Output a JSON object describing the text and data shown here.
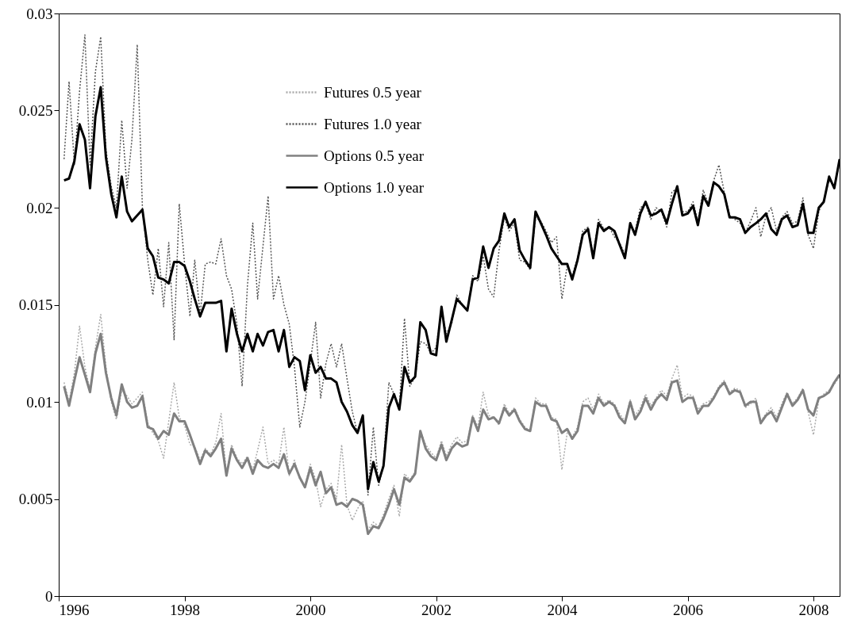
{
  "chart_data": {
    "type": "line",
    "x": [
      "1996-02",
      "1996-03",
      "1996-04",
      "1996-05",
      "1996-06",
      "1996-07",
      "1996-08",
      "1996-09",
      "1996-10",
      "1996-11",
      "1996-12",
      "1997-01",
      "1997-02",
      "1997-03",
      "1997-04",
      "1997-05",
      "1997-06",
      "1997-07",
      "1997-08",
      "1997-09",
      "1997-10",
      "1997-11",
      "1997-12",
      "1998-01",
      "1998-02",
      "1998-03",
      "1998-04",
      "1998-05",
      "1998-06",
      "1998-07",
      "1998-08",
      "1998-09",
      "1998-10",
      "1998-11",
      "1998-12",
      "1999-01",
      "1999-02",
      "1999-03",
      "1999-04",
      "1999-05",
      "1999-06",
      "1999-07",
      "1999-08",
      "1999-09",
      "1999-10",
      "1999-11",
      "1999-12",
      "2000-01",
      "2000-02",
      "2000-03",
      "2000-04",
      "2000-05",
      "2000-06",
      "2000-07",
      "2000-08",
      "2000-09",
      "2000-10",
      "2000-11",
      "2000-12",
      "2001-01",
      "2001-02",
      "2001-03",
      "2001-04",
      "2001-05",
      "2001-06",
      "2001-07",
      "2001-08",
      "2001-09",
      "2001-10",
      "2001-11",
      "2001-12",
      "2002-01",
      "2002-02",
      "2002-03",
      "2002-04",
      "2002-05",
      "2002-06",
      "2002-07",
      "2002-08",
      "2002-09",
      "2002-10",
      "2002-11",
      "2002-12",
      "2003-01",
      "2003-02",
      "2003-03",
      "2003-04",
      "2003-05",
      "2003-06",
      "2003-07",
      "2003-08",
      "2003-09",
      "2003-10",
      "2003-11",
      "2003-12",
      "2004-01",
      "2004-02",
      "2004-03",
      "2004-04",
      "2004-05",
      "2004-06",
      "2004-07",
      "2004-08",
      "2004-09",
      "2004-10",
      "2004-11",
      "2004-12",
      "2005-01",
      "2005-02",
      "2005-03",
      "2005-04",
      "2005-05",
      "2005-06",
      "2005-07",
      "2005-08",
      "2005-09",
      "2005-10",
      "2005-11",
      "2005-12",
      "2006-01",
      "2006-02",
      "2006-03",
      "2006-04",
      "2006-05",
      "2006-06",
      "2006-07",
      "2006-08",
      "2006-09",
      "2006-10",
      "2006-11",
      "2006-12",
      "2007-01",
      "2007-02",
      "2007-03",
      "2007-04",
      "2007-05",
      "2007-06",
      "2007-07",
      "2007-08",
      "2007-09",
      "2007-10",
      "2007-11",
      "2007-12",
      "2008-01",
      "2008-02",
      "2008-03",
      "2008-04",
      "2008-05",
      "2008-06"
    ],
    "series": [
      {
        "name": "Futures 0.5 year",
        "color": "#aaaaaa",
        "line_style": "dotted",
        "values": [
          0.011,
          0.01,
          0.0115,
          0.0139,
          0.0118,
          0.0106,
          0.0128,
          0.0145,
          0.0118,
          0.01,
          0.0091,
          0.0106,
          0.0103,
          0.0099,
          0.0102,
          0.0105,
          0.0089,
          0.0084,
          0.008,
          0.0071,
          0.009,
          0.011,
          0.0092,
          0.0088,
          0.0078,
          0.0077,
          0.007,
          0.0076,
          0.0073,
          0.0079,
          0.0094,
          0.0062,
          0.0078,
          0.0071,
          0.0068,
          0.0072,
          0.0065,
          0.0075,
          0.0087,
          0.0068,
          0.007,
          0.0068,
          0.0087,
          0.0062,
          0.007,
          0.006,
          0.0057,
          0.0068,
          0.006,
          0.0046,
          0.0055,
          0.0058,
          0.005,
          0.0078,
          0.0047,
          0.0039,
          0.0045,
          0.0049,
          0.0034,
          0.0038,
          0.0036,
          0.0042,
          0.005,
          0.0057,
          0.0041,
          0.0063,
          0.006,
          0.0064,
          0.0085,
          0.0078,
          0.0074,
          0.0071,
          0.008,
          0.0072,
          0.0078,
          0.0082,
          0.0079,
          0.008,
          0.0093,
          0.0087,
          0.0105,
          0.0093,
          0.0092,
          0.0088,
          0.0099,
          0.0094,
          0.0097,
          0.0091,
          0.0087,
          0.0085,
          0.0102,
          0.0099,
          0.0099,
          0.0092,
          0.0091,
          0.0065,
          0.0084,
          0.0082,
          0.0087,
          0.01,
          0.0102,
          0.0096,
          0.0104,
          0.0099,
          0.0101,
          0.0099,
          0.0094,
          0.009,
          0.0101,
          0.0093,
          0.0097,
          0.0104,
          0.0098,
          0.0102,
          0.0106,
          0.0103,
          0.0112,
          0.0119,
          0.0102,
          0.0104,
          0.0103,
          0.0096,
          0.0099,
          0.01,
          0.0103,
          0.0108,
          0.0111,
          0.0105,
          0.0107,
          0.0106,
          0.0097,
          0.0099,
          0.0102,
          0.009,
          0.0094,
          0.0097,
          0.0092,
          0.0099,
          0.0105,
          0.0099,
          0.0102,
          0.0107,
          0.0095,
          0.0083,
          0.0101,
          0.0104,
          0.0106,
          0.0109,
          0.0113
        ]
      },
      {
        "name": "Futures 1.0 year",
        "color": "#555555",
        "line_style": "dotted",
        "values": [
          0.0225,
          0.0265,
          0.0222,
          0.026,
          0.0289,
          0.0222,
          0.027,
          0.0288,
          0.023,
          0.0211,
          0.02,
          0.0245,
          0.021,
          0.0235,
          0.0284,
          0.02,
          0.0173,
          0.0155,
          0.0179,
          0.0149,
          0.0182,
          0.0132,
          0.0202,
          0.0171,
          0.0144,
          0.0173,
          0.0145,
          0.0171,
          0.0172,
          0.0171,
          0.0184,
          0.0165,
          0.0158,
          0.014,
          0.0108,
          0.016,
          0.0192,
          0.0153,
          0.018,
          0.0206,
          0.0153,
          0.0165,
          0.015,
          0.014,
          0.0118,
          0.0087,
          0.01,
          0.012,
          0.0141,
          0.0102,
          0.012,
          0.013,
          0.0118,
          0.013,
          0.0112,
          0.0095,
          0.0084,
          0.0092,
          0.0052,
          0.0087,
          0.0057,
          0.0068,
          0.011,
          0.0104,
          0.0097,
          0.0143,
          0.0108,
          0.0113,
          0.0131,
          0.013,
          0.0125,
          0.0128,
          0.0148,
          0.0135,
          0.014,
          0.0155,
          0.015,
          0.0147,
          0.0165,
          0.0162,
          0.0175,
          0.0158,
          0.0154,
          0.0178,
          0.0195,
          0.0188,
          0.0192,
          0.0173,
          0.0172,
          0.0168,
          0.0195,
          0.0193,
          0.0188,
          0.0182,
          0.0185,
          0.0153,
          0.017,
          0.0165,
          0.0174,
          0.0188,
          0.019,
          0.0176,
          0.0194,
          0.0189,
          0.019,
          0.0185,
          0.0182,
          0.0176,
          0.019,
          0.0188,
          0.02,
          0.0202,
          0.0194,
          0.02,
          0.0198,
          0.019,
          0.0208,
          0.021,
          0.0198,
          0.0198,
          0.0203,
          0.0193,
          0.0209,
          0.0202,
          0.0214,
          0.0222,
          0.0208,
          0.0196,
          0.0194,
          0.0192,
          0.0187,
          0.0193,
          0.02,
          0.0185,
          0.0196,
          0.02,
          0.0188,
          0.0195,
          0.0198,
          0.0192,
          0.0193,
          0.0205,
          0.0186,
          0.0179,
          0.0198,
          0.0204,
          0.0214,
          0.0211,
          0.0223
        ]
      },
      {
        "name": "Options 0.5 year",
        "color": "#808080",
        "line_style": "solid",
        "values": [
          0.0108,
          0.0098,
          0.0111,
          0.0123,
          0.0114,
          0.0105,
          0.0125,
          0.0135,
          0.0115,
          0.0102,
          0.0093,
          0.0109,
          0.01,
          0.0097,
          0.0098,
          0.0103,
          0.0087,
          0.0086,
          0.0081,
          0.0085,
          0.0083,
          0.0094,
          0.009,
          0.009,
          0.0083,
          0.0076,
          0.0068,
          0.0075,
          0.0072,
          0.0076,
          0.0081,
          0.0062,
          0.0076,
          0.007,
          0.0066,
          0.0071,
          0.0063,
          0.007,
          0.0067,
          0.0066,
          0.0068,
          0.0066,
          0.0073,
          0.0063,
          0.0068,
          0.0061,
          0.0056,
          0.0066,
          0.0057,
          0.0064,
          0.0053,
          0.0056,
          0.0047,
          0.0048,
          0.0046,
          0.005,
          0.0049,
          0.0047,
          0.0032,
          0.0036,
          0.0035,
          0.004,
          0.0047,
          0.0055,
          0.0047,
          0.0061,
          0.0059,
          0.0063,
          0.0085,
          0.0076,
          0.0072,
          0.007,
          0.0078,
          0.007,
          0.0076,
          0.0079,
          0.0077,
          0.0078,
          0.0092,
          0.0085,
          0.0096,
          0.0091,
          0.0092,
          0.0089,
          0.0097,
          0.0093,
          0.0096,
          0.009,
          0.0086,
          0.0085,
          0.01,
          0.0098,
          0.0098,
          0.0091,
          0.009,
          0.0084,
          0.0086,
          0.0081,
          0.0085,
          0.0098,
          0.0098,
          0.0094,
          0.0102,
          0.0098,
          0.01,
          0.0098,
          0.0092,
          0.0089,
          0.01,
          0.0091,
          0.0095,
          0.0102,
          0.0096,
          0.0101,
          0.0104,
          0.0101,
          0.011,
          0.0111,
          0.01,
          0.0102,
          0.0102,
          0.0094,
          0.0098,
          0.0098,
          0.0102,
          0.0107,
          0.011,
          0.0104,
          0.0106,
          0.0105,
          0.0098,
          0.01,
          0.01,
          0.0089,
          0.0093,
          0.0095,
          0.009,
          0.0097,
          0.0104,
          0.0098,
          0.0101,
          0.0106,
          0.0096,
          0.0093,
          0.0102,
          0.0103,
          0.0105,
          0.011,
          0.0114
        ]
      },
      {
        "name": "Options 1.0 year",
        "color": "#000000",
        "line_style": "solid",
        "values": [
          0.0214,
          0.0215,
          0.0224,
          0.0243,
          0.0235,
          0.021,
          0.0247,
          0.0262,
          0.0226,
          0.0207,
          0.0195,
          0.0216,
          0.0198,
          0.0193,
          0.0196,
          0.0199,
          0.0179,
          0.0175,
          0.0164,
          0.0163,
          0.0161,
          0.0172,
          0.0172,
          0.017,
          0.0162,
          0.0153,
          0.0144,
          0.0151,
          0.0151,
          0.0151,
          0.0152,
          0.0126,
          0.0148,
          0.0135,
          0.0126,
          0.0135,
          0.0126,
          0.0135,
          0.0129,
          0.0136,
          0.0137,
          0.0126,
          0.0137,
          0.0118,
          0.0123,
          0.0121,
          0.0106,
          0.0124,
          0.0115,
          0.0118,
          0.0112,
          0.0112,
          0.011,
          0.01,
          0.0095,
          0.0088,
          0.0084,
          0.0093,
          0.0055,
          0.0069,
          0.0059,
          0.0067,
          0.0097,
          0.0104,
          0.0096,
          0.0118,
          0.011,
          0.0113,
          0.0141,
          0.0137,
          0.0125,
          0.0124,
          0.0149,
          0.0131,
          0.0142,
          0.0153,
          0.015,
          0.0147,
          0.0163,
          0.0164,
          0.018,
          0.0169,
          0.0179,
          0.0183,
          0.0197,
          0.019,
          0.0194,
          0.0178,
          0.0173,
          0.0169,
          0.0198,
          0.0192,
          0.0186,
          0.0179,
          0.0175,
          0.0171,
          0.0171,
          0.0163,
          0.0173,
          0.0186,
          0.0189,
          0.0174,
          0.0192,
          0.0188,
          0.019,
          0.0188,
          0.0181,
          0.0174,
          0.0192,
          0.0186,
          0.0197,
          0.0203,
          0.0196,
          0.0197,
          0.0199,
          0.0192,
          0.0202,
          0.0211,
          0.0196,
          0.0197,
          0.0201,
          0.0191,
          0.0206,
          0.0201,
          0.0213,
          0.0211,
          0.0207,
          0.0195,
          0.0195,
          0.0194,
          0.0187,
          0.019,
          0.0192,
          0.0194,
          0.0197,
          0.0189,
          0.0186,
          0.0194,
          0.0196,
          0.019,
          0.0191,
          0.0202,
          0.0187,
          0.0187,
          0.02,
          0.0203,
          0.0216,
          0.021,
          0.0225
        ]
      }
    ],
    "xlim": [
      "1996",
      "2008-06"
    ],
    "xticks": [
      "1996",
      "1998",
      "2000",
      "2002",
      "2004",
      "2006",
      "2008"
    ],
    "ylim": [
      0,
      0.03
    ],
    "yticks": [
      0,
      0.005,
      0.01,
      0.015,
      0.02,
      0.025,
      0.03
    ],
    "legend": "top"
  }
}
